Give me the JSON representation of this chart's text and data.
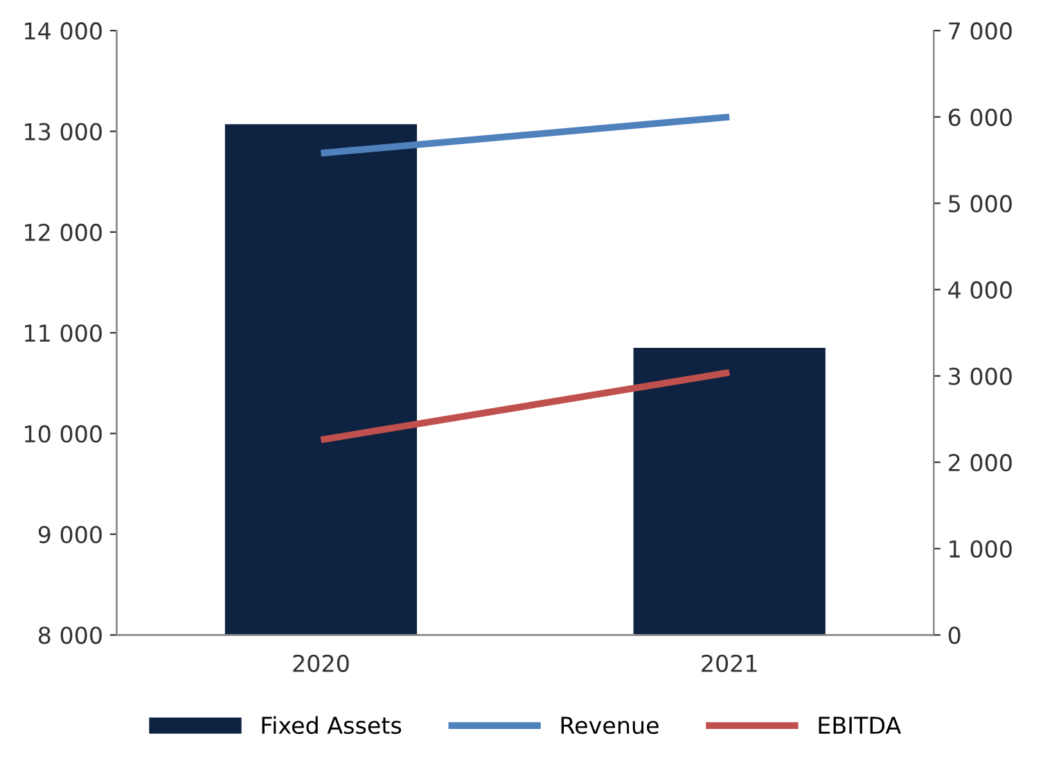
{
  "chart_data": {
    "type": "bar",
    "categories": [
      "2020",
      "2021"
    ],
    "series": [
      {
        "name": "Fixed Assets",
        "color": "#0e2341",
        "values": [
          13070,
          10850
        ]
      },
      {
        "name": "Revenue",
        "type": "line",
        "axis": "y2",
        "color": "#4f81bd",
        "values": [
          5580,
          6000
        ]
      },
      {
        "name": "EBITDA",
        "type": "line",
        "axis": "y2",
        "color": "#c0504d",
        "values": [
          2260,
          3040
        ]
      }
    ],
    "ylim": [
      8000,
      14000
    ],
    "yticks": [
      {
        "value": 8000,
        "label": "8 000"
      },
      {
        "value": 9000,
        "label": "9 000"
      },
      {
        "value": 10000,
        "label": "10 000"
      },
      {
        "value": 11000,
        "label": "11 000"
      },
      {
        "value": 12000,
        "label": "12 000"
      },
      {
        "value": 13000,
        "label": "13 000"
      },
      {
        "value": 14000,
        "label": "14 000"
      }
    ],
    "y2lim": [
      0,
      7000
    ],
    "y2ticks": [
      0,
      {
        "value": 1000,
        "label": "1 000"
      },
      {
        "value": 2000,
        "label": "2 000"
      },
      {
        "value": 3000,
        "label": "3 000"
      },
      {
        "value": 4000,
        "label": "4 000"
      },
      {
        "value": 5000,
        "label": "5 000"
      },
      {
        "value": 6000,
        "label": "6 000"
      },
      {
        "value": 7000,
        "label": "7 000"
      }
    ],
    "legend": "bottom",
    "grid": false,
    "marker": "none",
    "line_style": "solid"
  }
}
